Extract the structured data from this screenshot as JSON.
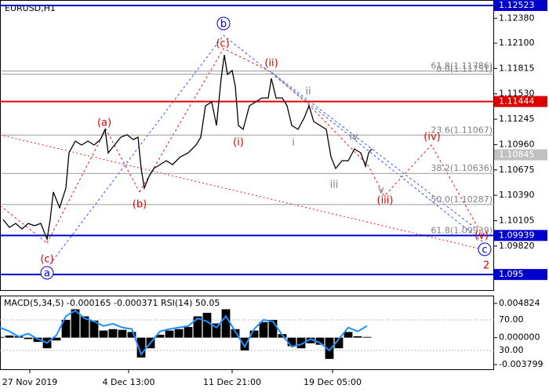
{
  "chart_data": [
    {
      "type": "line",
      "title": "EURUSD,H1",
      "color": "#000000",
      "x": [
        1,
        3,
        5,
        7,
        9,
        11,
        13,
        15,
        16,
        17,
        19,
        21,
        22,
        24,
        26,
        28,
        30,
        32,
        33.5,
        34.5,
        36.5,
        38.5,
        40.5,
        42.5,
        44,
        45,
        46,
        47.5,
        49,
        51,
        53,
        55,
        57.5,
        60,
        62.5,
        64,
        65.5,
        67.5,
        69,
        70.5,
        71.5,
        72.5,
        74,
        75,
        76,
        77.5,
        79.5,
        81.5,
        83.5,
        85.5,
        86.5,
        88,
        90,
        91.5,
        93,
        95,
        97,
        98.5,
        100,
        102,
        104,
        105.5,
        107,
        109,
        111,
        113,
        115,
        116.5,
        117.5,
        118.5
      ],
      "values": [
        1.10118,
        1.1003,
        1.10074,
        1.10012,
        1.10074,
        1.10048,
        1.10074,
        1.09898,
        1.10118,
        1.10427,
        1.1025,
        1.10471,
        1.10867,
        1.10999,
        1.10955,
        1.10999,
        1.10955,
        1.11017,
        1.11131,
        1.10867,
        1.10955,
        1.11043,
        1.1107,
        1.11017,
        1.11043,
        1.10691,
        1.10471,
        1.10603,
        1.10691,
        1.10735,
        1.10779,
        1.10735,
        1.10823,
        1.10867,
        1.10955,
        1.11043,
        1.11396,
        1.1144,
        1.11175,
        1.11704,
        1.11968,
        1.11748,
        1.11792,
        1.11616,
        1.11175,
        1.11131,
        1.11396,
        1.1144,
        1.11484,
        1.11484,
        1.11704,
        1.11484,
        1.11484,
        1.11396,
        1.11175,
        1.11131,
        1.11263,
        1.11396,
        1.11219,
        1.11175,
        1.11131,
        1.10823,
        1.10691,
        1.10779,
        1.10779,
        1.10911,
        1.10867,
        1.10717,
        1.10867,
        1.10911
      ],
      "xlim": [
        0,
        157.5
      ],
      "ylim": [
        1.09325,
        1.12585
      ],
      "yticks": [
        {
          "value": 1.1238,
          "label": "1.12380"
        },
        {
          "value": 1.121,
          "label": "1.12100"
        },
        1.11815,
        {
          "value": 1.1153,
          "label": "1.11530"
        },
        1.11245,
        {
          "value": 1.1096,
          "label": "1.10960"
        },
        1.10675,
        {
          "value": 1.1039,
          "label": "1.10390"
        },
        1.10105,
        {
          "value": 1.0982,
          "label": "1.09820"
        }
      ],
      "levels": [
        {
          "value": 1.12523,
          "color": "#0000cc",
          "line": true
        },
        {
          "value": 1.11444,
          "color": "#dd0000",
          "line": true
        },
        {
          "value": 1.10845,
          "color": "#c0c0c0",
          "line": false
        },
        {
          "value": 1.09939,
          "color": "#0000cc",
          "line": true
        },
        {
          "value": 1.095,
          "color": "#0000cc",
          "line": true
        }
      ],
      "fib_levels": [
        {
          "value": 1.11786,
          "label": "61.8(1.11786)"
        },
        {
          "value": 1.11751,
          "label": "0.0(1.11751)"
        },
        {
          "value": 1.11067,
          "label": "23.6(1.11067)"
        },
        {
          "value": 1.10636,
          "label": "38.2(1.10636)"
        },
        {
          "value": 1.10287,
          "label": "50.0(1.10287)"
        },
        {
          "value": 1.09939,
          "label": "61.8(1.09939)"
        }
      ],
      "annotations": [
        {
          "text": "b",
          "color": "#0000cc",
          "circle": true
        },
        {
          "text": "(c)",
          "color": "#dd0000"
        },
        {
          "text": "(ii)",
          "color": "#dd0000"
        },
        {
          "text": "ii",
          "color": "#808080"
        },
        {
          "text": "(a)",
          "color": "#dd0000"
        },
        {
          "text": "(i)",
          "color": "#dd0000"
        },
        {
          "text": "i",
          "color": "#808080"
        },
        {
          "text": "iv",
          "color": "#808080"
        },
        {
          "text": "(iv)",
          "color": "#dd0000"
        },
        {
          "text": "(b)",
          "color": "#dd0000"
        },
        {
          "text": "iii",
          "color": "#808080"
        },
        {
          "text": "v",
          "color": "#808080"
        },
        {
          "text": "(iii)",
          "color": "#dd0000"
        },
        {
          "text": "(c)",
          "color": "#dd0000"
        },
        {
          "text": "a",
          "color": "#0000cc",
          "circle": true
        },
        {
          "text": "(v)",
          "color": "#dd0000"
        },
        {
          "text": "c",
          "color": "#0000cc",
          "circle": true
        },
        {
          "text": "2",
          "color": "#dd0000"
        }
      ]
    },
    {
      "type": "bar",
      "title": "MACD(5,34,5) -0.000165 -0.000371 RSI(14) 50.05",
      "x": [
        0,
        3,
        6,
        9,
        12,
        15,
        18,
        21,
        24,
        27,
        30,
        33,
        36,
        39,
        42,
        45,
        48,
        51,
        54,
        57,
        60,
        63,
        66,
        69,
        72,
        75,
        78,
        81,
        84,
        87,
        90,
        93,
        96,
        99,
        102,
        105,
        108,
        111,
        114,
        117
      ],
      "series": [
        {
          "type": "bar",
          "color": "#000000",
          "values": [
            0.0001,
            0.0003,
            0.0002,
            -0.0002,
            -0.0006,
            -0.0015,
            -0.0004,
            0.0025,
            0.004,
            0.003,
            0.0024,
            0.001,
            0.0012,
            0.0011,
            0.0008,
            -0.0028,
            -0.0015,
            0.0004,
            0.001,
            0.0012,
            0.0015,
            0.003,
            0.0035,
            0.002,
            0.004,
            0.0012,
            -0.0018,
            0.001,
            0.0022,
            0.0025,
            0.0005,
            -0.0012,
            -0.0015,
            -0.0008,
            -0.001,
            -0.003,
            -0.0015,
            0.0008,
            0.0002,
            0.0001
          ]
        },
        {
          "type": "line",
          "axis": "y2",
          "color": "#1e90ff",
          "values": [
            60,
            55,
            48,
            52,
            45,
            40,
            50,
            75,
            82,
            72,
            68,
            62,
            65,
            60,
            58,
            25,
            40,
            55,
            58,
            60,
            62,
            72,
            68,
            60,
            75,
            55,
            35,
            58,
            70,
            68,
            50,
            35,
            38,
            45,
            40,
            30,
            45,
            60,
            55,
            62
          ]
        }
      ],
      "xlim": [
        0,
        157.5
      ],
      "ylim": [
        -0.00457,
        0.00582
      ],
      "yticks": [
        0.004824,
        {
          "value": 0,
          "label": "0.000000"
        },
        -0.003799
      ],
      "y2lim": [
        4.4,
        100.8
      ],
      "y2ticks": [
        {
          "value": 70,
          "label": "70.00"
        },
        {
          "value": 30,
          "label": "30.00"
        }
      ],
      "xticks": [
        {
          "value": 9.5,
          "label": "27 Nov 2019"
        },
        {
          "value": 41,
          "label": "4 Dec 13:00"
        },
        {
          "value": 74,
          "label": "11 Dec 21:00"
        },
        {
          "value": 106,
          "label": "19 Dec 05:00"
        }
      ]
    }
  ]
}
